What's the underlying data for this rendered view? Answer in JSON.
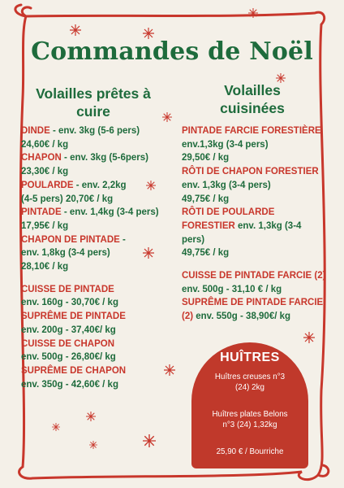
{
  "title": "Commandes de Noël",
  "left": {
    "heading_line1": "Volailles prêtes à",
    "heading_line2": "cuire",
    "lines": [
      {
        "red": "DINDE",
        "green": " - env. 3kg (5-6 pers)"
      },
      {
        "red": "",
        "green": " 24,60€ / kg"
      },
      {
        "red": "CHAPON",
        "green": " - env. 3kg (5-6pers)"
      },
      {
        "red": "",
        "green": "23,30€ / kg"
      },
      {
        "red": "POULARDE",
        "green": " - env. 2,2kg"
      },
      {
        "red": "",
        "green": "(4-5 pers) 20,70€ / kg"
      },
      {
        "red": "PINTADE",
        "green": " - env. 1,4kg (3-4 pers)"
      },
      {
        "red": "",
        "green": "17,95€ / kg"
      },
      {
        "red": "CHAPON DE PINTADE",
        "green": " -"
      },
      {
        "red": "",
        "green": "env. 1,8kg (3-4 pers)"
      },
      {
        "red": "",
        "green": "28,10€ / kg"
      }
    ],
    "lines2": [
      {
        "red": "CUISSE DE PINTADE",
        "green": ""
      },
      {
        "red": "",
        "green": "env. 160g - 30,70€ / kg"
      },
      {
        "red": "SUPRÊME DE PINTADE",
        "green": ""
      },
      {
        "red": "",
        "green": "env. 200g - 37,40€/ kg"
      },
      {
        "red": "CUISSE DE CHAPON",
        "green": ""
      },
      {
        "red": "",
        "green": "env. 500g - 26,80€/ kg"
      },
      {
        "red": "SUPRÊME DE CHAPON",
        "green": ""
      },
      {
        "red": "",
        "green": "env. 350g - 42,60€ / kg"
      }
    ]
  },
  "right": {
    "heading_line1": "Volailles",
    "heading_line2": "cuisinées",
    "lines": [
      {
        "red": "PINTADE FARCIE FORESTIÈRE",
        "green": ""
      },
      {
        "red": "",
        "green": "env.1,3kg (3-4 pers)"
      },
      {
        "red": "",
        "green": "29,50€ / kg"
      },
      {
        "red": "RÔTI DE CHAPON FORESTIER",
        "green": ""
      },
      {
        "red": "",
        "green": "env. 1,3kg (3-4 pers)"
      },
      {
        "red": "",
        "green": "49,75€ / kg"
      },
      {
        "red": "RÔTI DE POULARDE",
        "green": ""
      },
      {
        "red": "FORESTIER",
        "green": " env. 1,3kg (3-4"
      },
      {
        "red": "",
        "green": "pers)"
      },
      {
        "red": "",
        "green": "49,75€ / kg"
      }
    ],
    "lines2": [
      {
        "red": "CUISSE DE PINTADE FARCIE (2)",
        "green": ""
      },
      {
        "red": "",
        "green": "env. 500g - 31,10 € / kg"
      },
      {
        "red": "SUPRÊME DE PINTADE FARCIE",
        "green": ""
      },
      {
        "red": "(2)",
        "green": " env. 550g - 38,90€/ kg"
      }
    ]
  },
  "oysters": {
    "title": "HUÎTRES",
    "line1": "Huîtres creuses n°3",
    "line2": "(24) 2kg",
    "line3": "Huîtres plates Belons",
    "line4": "n°3 (24) 1,32kg",
    "price": "25,90 € / Bourriche"
  },
  "colors": {
    "green": "#1e6b3c",
    "red": "#c8372c",
    "box": "#c0392b",
    "background": "#f4f0e8"
  }
}
